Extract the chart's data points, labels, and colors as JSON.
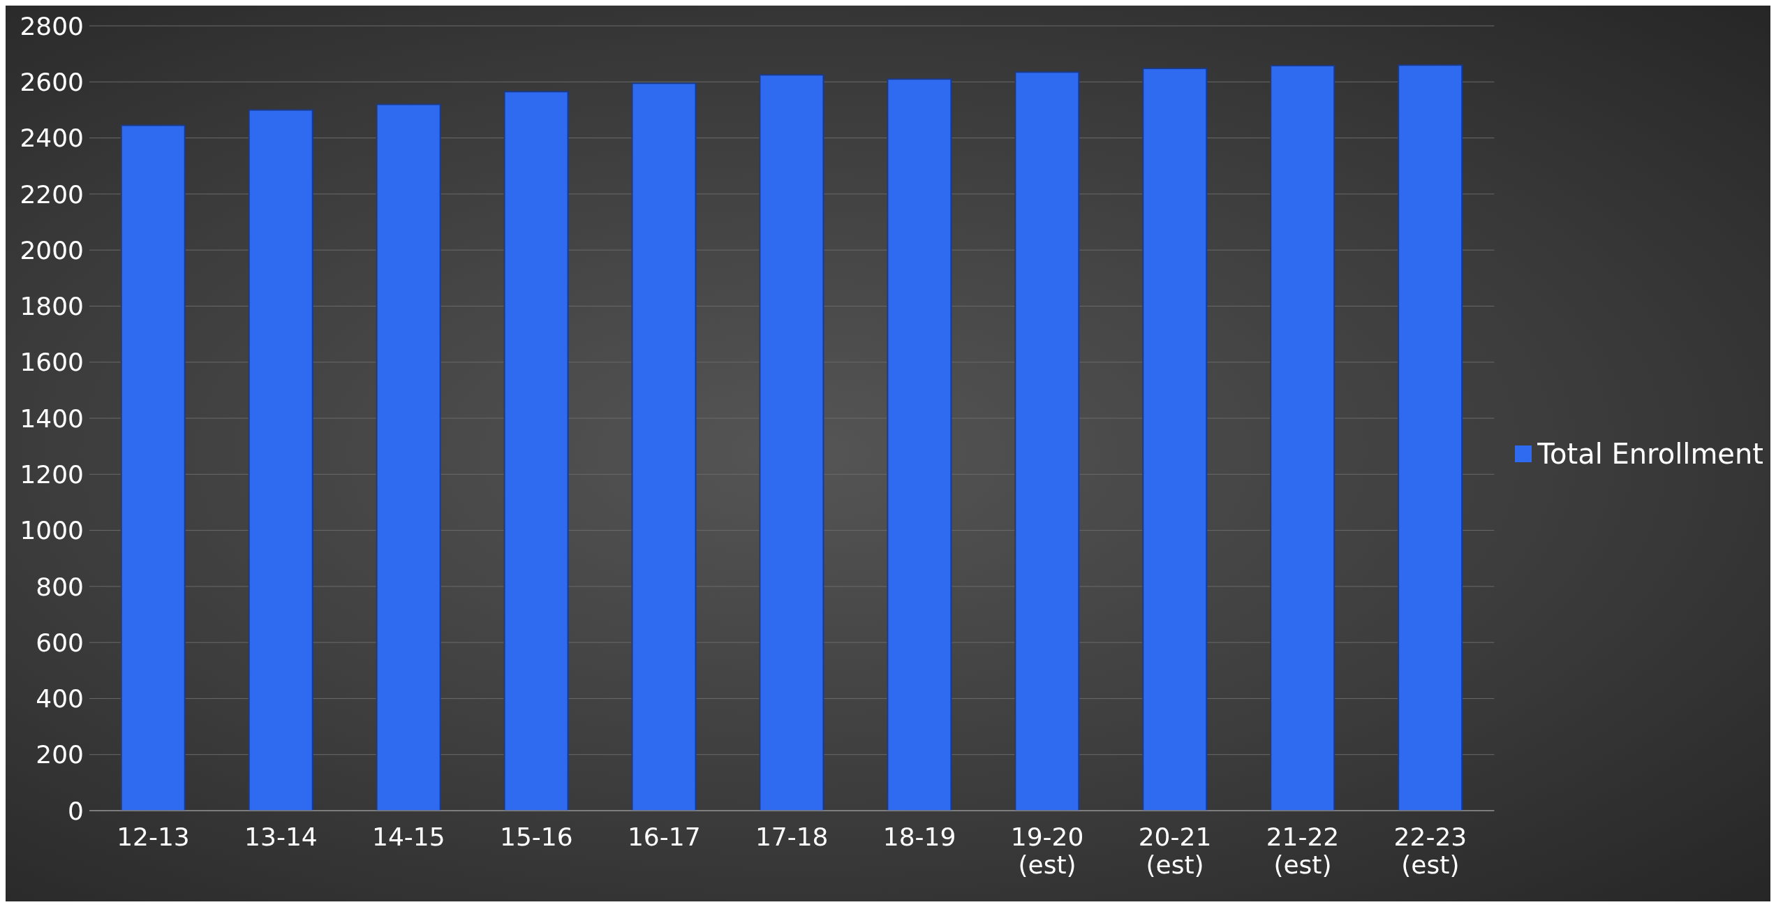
{
  "chart_data": {
    "type": "bar",
    "categories": [
      "12-13",
      "13-14",
      "14-15",
      "15-16",
      "16-17",
      "17-18",
      "18-19",
      "19-20 (est)",
      "20-21 (est)",
      "21-22 (est)",
      "22-23 (est)"
    ],
    "series": [
      {
        "name": "Total Enrollment",
        "color": "#2f6bf0",
        "values": [
          2445,
          2500,
          2520,
          2565,
          2595,
          2625,
          2610,
          2635,
          2648,
          2658,
          2660
        ]
      }
    ],
    "ylim": [
      0,
      2800
    ],
    "yticks": [
      0,
      200,
      400,
      600,
      800,
      1000,
      1200,
      1400,
      1600,
      1800,
      2000,
      2200,
      2400,
      2600,
      2800
    ],
    "grid": "y",
    "legend": "right"
  }
}
